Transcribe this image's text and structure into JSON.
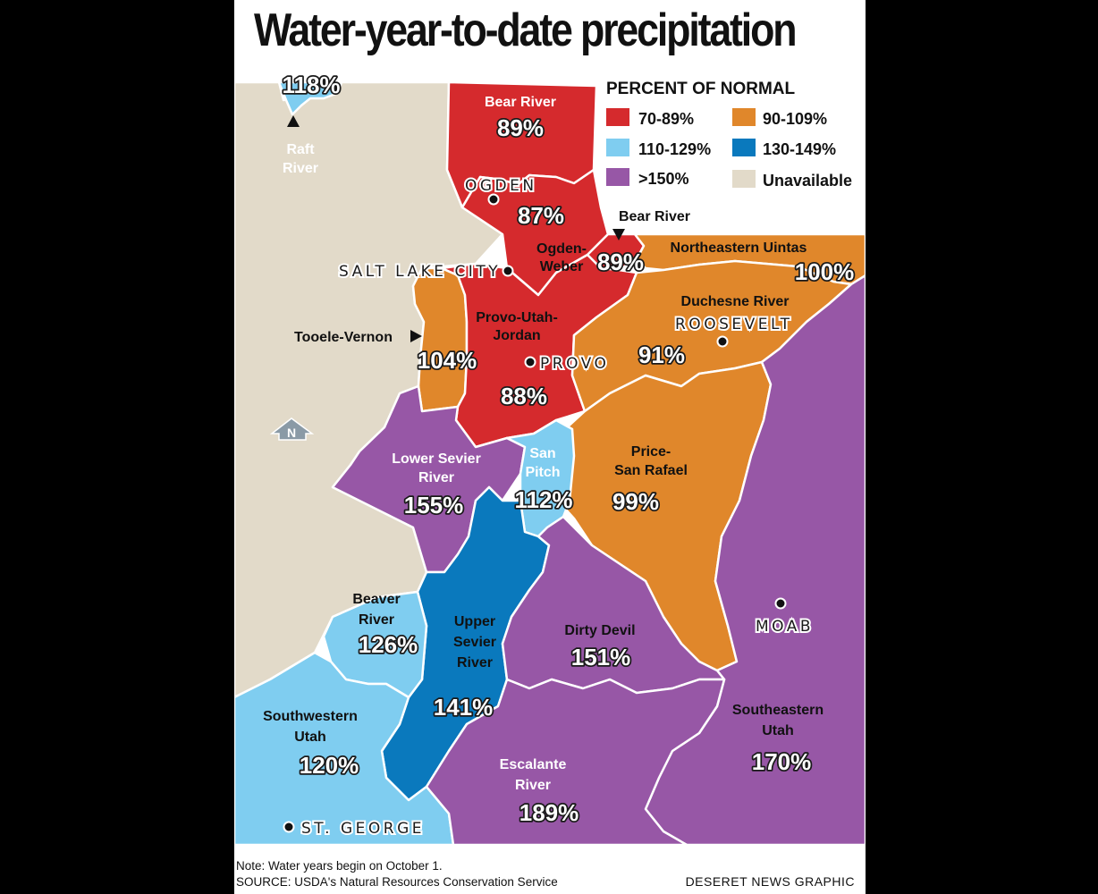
{
  "title": "Water-year-to-date precipitation",
  "legend": {
    "title": "PERCENT OF NORMAL",
    "items": [
      {
        "label": "70-89%",
        "color": "#d52a2d"
      },
      {
        "label": "90-109%",
        "color": "#e0872b"
      },
      {
        "label": "110-129%",
        "color": "#7fcdf0"
      },
      {
        "label": "130-149%",
        "color": "#0a79bd"
      },
      {
        "label": ">150%",
        "color": "#9757a6"
      },
      {
        "label": "Unavailable",
        "color": "#e2dac9"
      }
    ]
  },
  "regions": [
    {
      "name": "Raft River",
      "value": "118%"
    },
    {
      "name": "Bear River",
      "value": "89%"
    },
    {
      "name": "Ogden-Weber",
      "value": "87%"
    },
    {
      "name": "Bear River",
      "value": "89%"
    },
    {
      "name": "Northeastern Uintas",
      "value": "100%"
    },
    {
      "name": "Tooele-Vernon",
      "value": "104%"
    },
    {
      "name": "Provo-Utah-Jordan",
      "value": "88%"
    },
    {
      "name": "Duchesne River",
      "value": "91%"
    },
    {
      "name": "Lower Sevier River",
      "value": "155%"
    },
    {
      "name": "San Pitch",
      "value": "112%"
    },
    {
      "name": "Price-San Rafael",
      "value": "99%"
    },
    {
      "name": "Beaver River",
      "value": "126%"
    },
    {
      "name": "Upper Sevier River",
      "value": "141%"
    },
    {
      "name": "Dirty Devil",
      "value": "151%"
    },
    {
      "name": "Southeastern Utah",
      "value": "170%"
    },
    {
      "name": "Southwestern Utah",
      "value": "120%"
    },
    {
      "name": "Escalante River",
      "value": "189%"
    }
  ],
  "cities": [
    "OGDEN",
    "SALT LAKE CITY",
    "ROOSEVELT",
    "PROVO",
    "MOAB",
    "ST. GEORGE"
  ],
  "north_label": "N",
  "note": "Note: Water years begin on October 1.",
  "source": "SOURCE: USDA's Natural Resources Conservation Service",
  "credit": "DESERET NEWS GRAPHIC"
}
